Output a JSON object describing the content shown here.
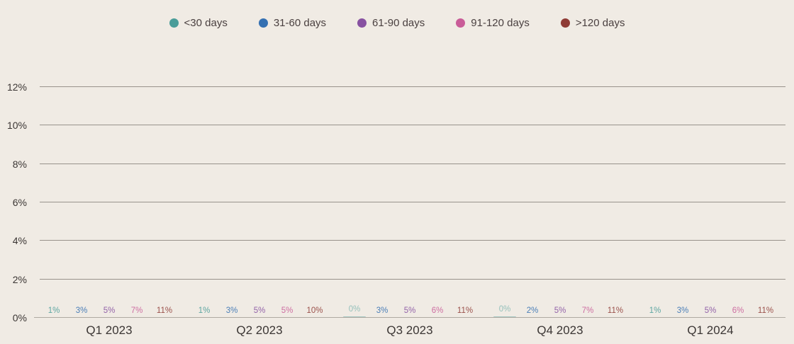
{
  "colors": {
    "background": "#F0EBE4",
    "grid": "#98928B",
    "axis_text": "#3B3634",
    "legend_text": "#4A4040"
  },
  "chart_data": {
    "type": "bar",
    "title": "",
    "xlabel": "",
    "ylabel": "",
    "categories": [
      "Q1 2023",
      "Q2 2023",
      "Q3 2023",
      "Q4 2023",
      "Q1 2024"
    ],
    "series": [
      {
        "name": "<30 days",
        "color": "#4A9D99",
        "values": [
          1,
          1,
          0,
          0,
          1
        ]
      },
      {
        "name": "31-60 days",
        "color": "#3470B2",
        "values": [
          3,
          3,
          3,
          2,
          3
        ]
      },
      {
        "name": "61-90 days",
        "color": "#8751A1",
        "values": [
          5,
          5,
          5,
          5,
          5
        ]
      },
      {
        "name": "91-120 days",
        "color": "#C95C98",
        "values": [
          7,
          5,
          6,
          7,
          6
        ]
      },
      {
        "name": ">120 days",
        "color": "#8F3B35",
        "values": [
          11,
          10,
          11,
          11,
          11
        ]
      }
    ],
    "data_labels": [
      "1%",
      "3%",
      "5%",
      "7%",
      "11%",
      "1%",
      "3%",
      "5%",
      "5%",
      "10%",
      "0%",
      "3%",
      "5%",
      "6%",
      "11%",
      "0%",
      "2%",
      "5%",
      "7%",
      "11%",
      "1%",
      "3%",
      "5%",
      "6%",
      "11%"
    ],
    "value_suffix": "%",
    "ylim": [
      0,
      12
    ],
    "ytick_step": 2,
    "ytick_labels": [
      "0%",
      "2%",
      "4%",
      "6%",
      "8%",
      "10%",
      "12%"
    ],
    "grid": true,
    "legend_position": "top"
  }
}
